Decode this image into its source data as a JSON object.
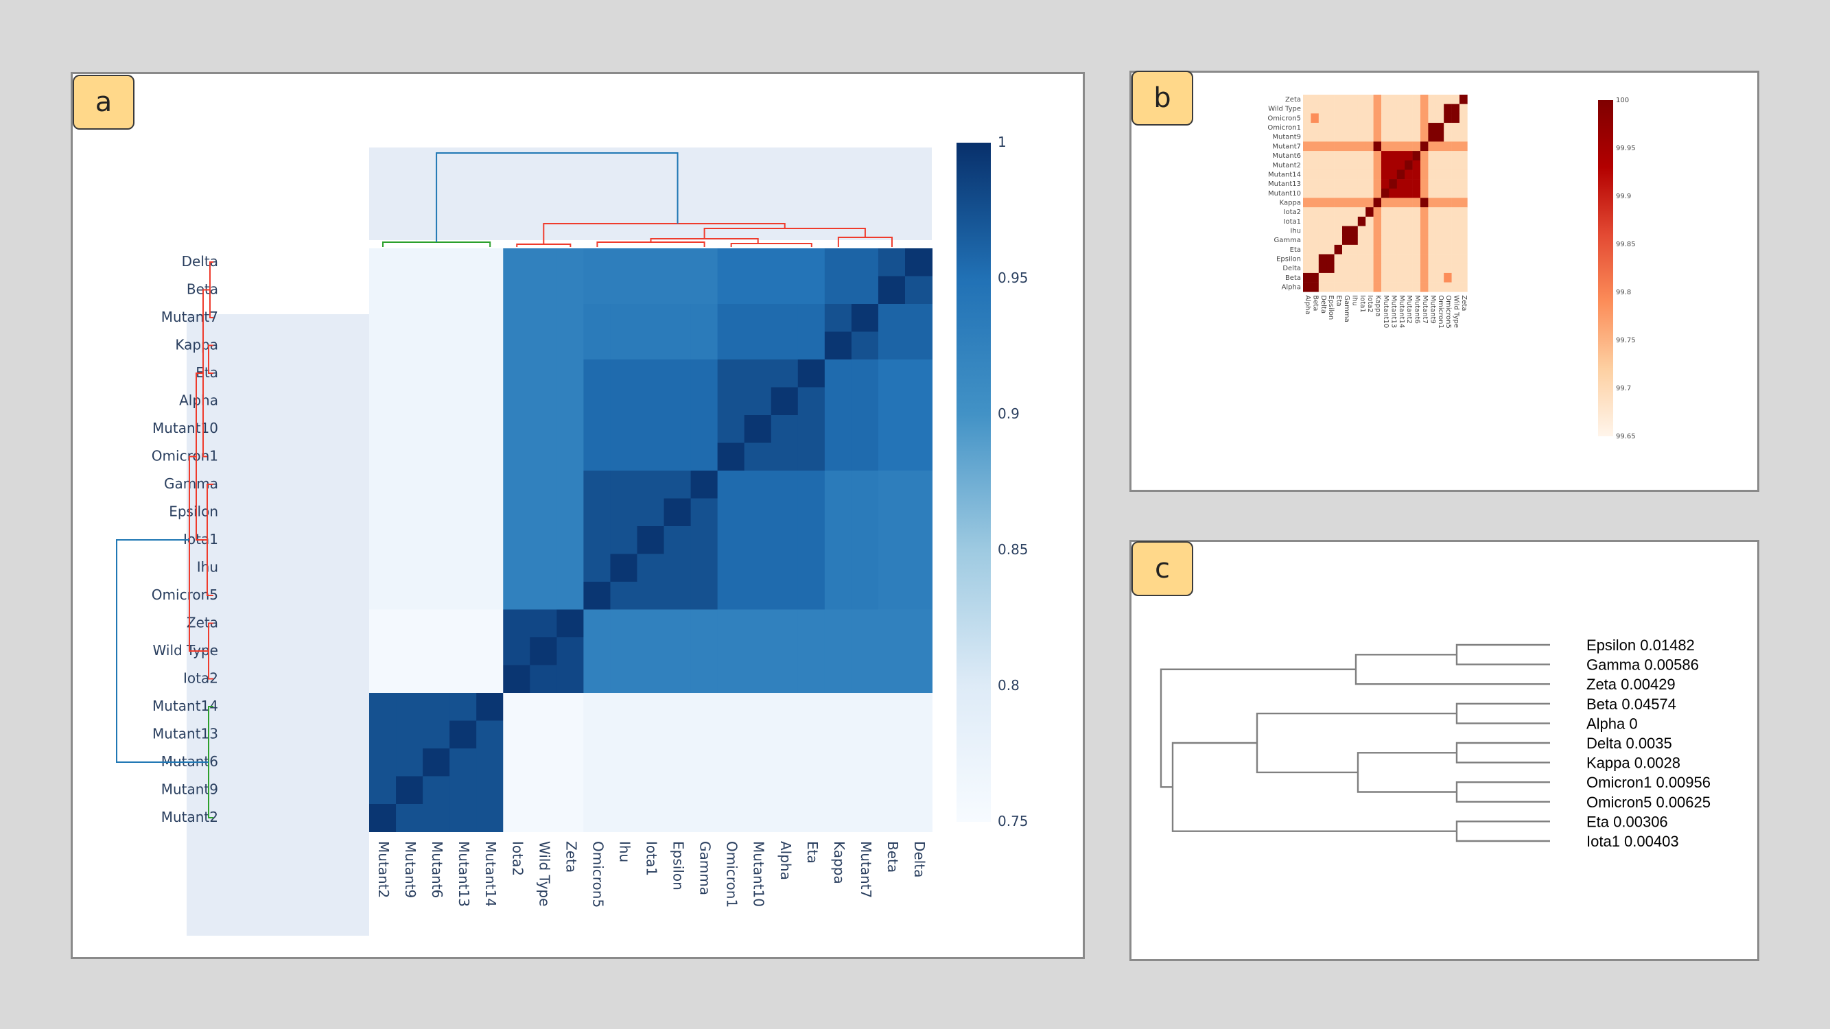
{
  "panels": {
    "a": {
      "label": "a"
    },
    "b": {
      "label": "b"
    },
    "c": {
      "label": "c"
    }
  },
  "chart_data": [
    {
      "id": "a",
      "type": "heatmap",
      "row_labels": [
        "Delta",
        "Beta",
        "Mutant7",
        "Kappa",
        "Eta",
        "Alpha",
        "Mutant10",
        "Omicron1",
        "Gamma",
        "Epsilon",
        "Iota1",
        "Ihu",
        "Omicron5",
        "Zeta",
        "Wild Type",
        "Iota2",
        "Mutant14",
        "Mutant13",
        "Mutant6",
        "Mutant9",
        "Mutant2"
      ],
      "col_labels": [
        "Mutant2",
        "Mutant9",
        "Mutant6",
        "Mutant13",
        "Mutant14",
        "Iota2",
        "Wild Type",
        "Zeta",
        "Omicron5",
        "Ihu",
        "Iota1",
        "Epsilon",
        "Gamma",
        "Omicron1",
        "Mutant10",
        "Alpha",
        "Eta",
        "Kappa",
        "Mutant7",
        "Beta",
        "Delta"
      ],
      "colorbar": {
        "min": 0.75,
        "max": 1,
        "ticks": [
          "1",
          "0.95",
          "0.9",
          "0.85",
          "0.8",
          "0.75"
        ],
        "colors": [
          "#f7fbff",
          "#deebf7",
          "#9ecae1",
          "#4292c6",
          "#2171b5",
          "#08306b"
        ]
      },
      "dendrogram_colors": {
        "group1": "#2ca02c",
        "group2": "#ef3b2c",
        "root": "#1f77b4"
      }
    },
    {
      "id": "b",
      "type": "heatmap",
      "row_labels": [
        "Zeta",
        "Wild Type",
        "Omicron5",
        "Omicron1",
        "Mutant9",
        "Mutant7",
        "Mutant6",
        "Mutant2",
        "Mutant14",
        "Mutant13",
        "Mutant10",
        "Kappa",
        "Iota2",
        "Iota1",
        "Ihu",
        "Gamma",
        "Eta",
        "Epsilon",
        "Delta",
        "Beta",
        "Alpha"
      ],
      "col_labels": [
        "Alpha",
        "Beta",
        "Delta",
        "Epsilon",
        "Eta",
        "Gamma",
        "Ihu",
        "Iota1",
        "Iota2",
        "Kappa",
        "Mutant10",
        "Mutant13",
        "Mutant14",
        "Mutant2",
        "Mutant6",
        "Mutant7",
        "Mutant9",
        "Omicron1",
        "Omicron5",
        "Wild Type",
        "Zeta"
      ],
      "colorbar": {
        "min": 99.65,
        "max": 100,
        "ticks": [
          "100",
          "99.95",
          "99.9",
          "99.85",
          "99.8",
          "99.75",
          "99.7",
          "99.65"
        ],
        "colors": [
          "#fff5eb",
          "#fdd0a2",
          "#fc8d59",
          "#e34a33",
          "#b30000",
          "#7f0000"
        ]
      }
    },
    {
      "id": "c",
      "type": "dendrogram",
      "leaves": [
        {
          "name": "Epsilon",
          "value": "0.01482"
        },
        {
          "name": "Gamma",
          "value": "0.00586"
        },
        {
          "name": "Zeta",
          "value": "0.00429"
        },
        {
          "name": "Beta",
          "value": "0.04574"
        },
        {
          "name": "Alpha",
          "value": "0"
        },
        {
          "name": "Delta",
          "value": "0.0035"
        },
        {
          "name": "Kappa",
          "value": "0.0028"
        },
        {
          "name": "Omicron1",
          "value": "0.00956"
        },
        {
          "name": "Omicron5",
          "value": "0.00625"
        },
        {
          "name": "Eta",
          "value": "0.00306"
        },
        {
          "name": "Iota1",
          "value": "0.00403"
        }
      ],
      "line_color": "#7f7f7f"
    }
  ]
}
